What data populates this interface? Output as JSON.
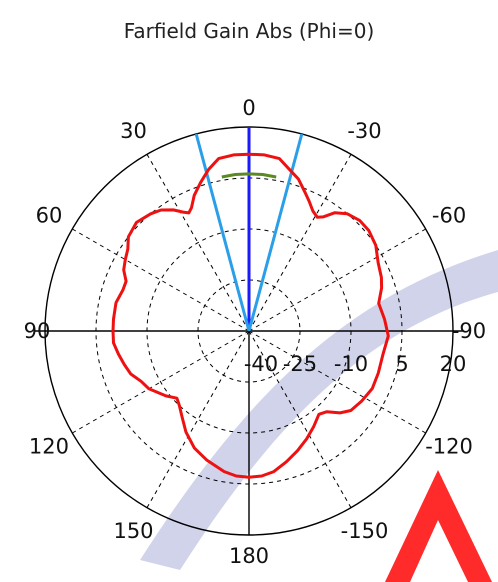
{
  "chart_data": {
    "type": "polar",
    "title": "Farfield Gain Abs (Phi=0)",
    "angle_unit": "deg",
    "angle_zero": "top",
    "angle_direction": "counterclockwise",
    "angle_ticks": [
      0,
      30,
      60,
      90,
      120,
      150,
      180,
      -150,
      -120,
      -90,
      -60,
      -30
    ],
    "angle_tick_labels": [
      "0",
      "30",
      "60",
      "90",
      "120",
      "150",
      "180",
      "-150",
      "-120",
      "-90",
      "-60",
      "-30"
    ],
    "radial_range": [
      -40,
      20
    ],
    "radial_ticks": [
      -40,
      -25,
      -10,
      5,
      20
    ],
    "radial_tick_labels": [
      "-40",
      "-25",
      "-10",
      "5",
      "20"
    ],
    "grid": true,
    "series": [
      {
        "color": "#ee1111",
        "points": [
          [
            0,
            12
          ],
          [
            5,
            12
          ],
          [
            10,
            11.5
          ],
          [
            14,
            9
          ],
          [
            18,
            6
          ],
          [
            22,
            3
          ],
          [
            25,
            0
          ],
          [
            27,
            -1
          ],
          [
            29,
            0
          ],
          [
            32,
            2
          ],
          [
            36,
            4
          ],
          [
            40,
            5
          ],
          [
            46,
            6
          ],
          [
            52,
            5
          ],
          [
            56,
            3
          ],
          [
            60,
            2
          ],
          [
            64,
            1
          ],
          [
            68,
            -1
          ],
          [
            72,
            -1
          ],
          [
            78,
            0
          ],
          [
            85,
            0
          ],
          [
            90,
            0
          ],
          [
            95,
            0
          ],
          [
            100,
            -1
          ],
          [
            105,
            -2
          ],
          [
            110,
            -3
          ],
          [
            115,
            -5
          ],
          [
            120,
            -6
          ],
          [
            128,
            -9
          ],
          [
            133,
            -11
          ],
          [
            137,
            -10
          ],
          [
            142,
            -8
          ],
          [
            148,
            -5
          ],
          [
            155,
            -2
          ],
          [
            162,
            0
          ],
          [
            170,
            2
          ],
          [
            175,
            2.8
          ],
          [
            180,
            3
          ],
          [
            -175,
            2.8
          ],
          [
            -170,
            2
          ],
          [
            -164,
            0
          ],
          [
            -158,
            -2
          ],
          [
            -152,
            -4
          ],
          [
            -146,
            -6
          ],
          [
            -140,
            -8
          ],
          [
            -136,
            -7
          ],
          [
            -132,
            -4
          ],
          [
            -128,
            -2
          ],
          [
            -122,
            -1
          ],
          [
            -115,
            0
          ],
          [
            -108,
            0
          ],
          [
            -100,
            0
          ],
          [
            -92,
            1
          ],
          [
            -85,
            0
          ],
          [
            -78,
            -1
          ],
          [
            -72,
            1
          ],
          [
            -68,
            2
          ],
          [
            -62,
            3
          ],
          [
            -56,
            5
          ],
          [
            -50,
            6
          ],
          [
            -45,
            6
          ],
          [
            -40,
            5
          ],
          [
            -36,
            3
          ],
          [
            -33,
            0
          ],
          [
            -31,
            -1
          ],
          [
            -28,
            0
          ],
          [
            -25,
            2
          ],
          [
            -22,
            4
          ],
          [
            -18,
            7
          ],
          [
            -14,
            9
          ],
          [
            -10,
            11.5
          ],
          [
            -5,
            12
          ],
          [
            0,
            12
          ]
        ]
      },
      {
        "color": "#5b8a24",
        "points": [
          [
            -10,
            6
          ],
          [
            -5,
            6.2
          ],
          [
            0,
            6.2
          ],
          [
            5,
            6.2
          ],
          [
            10,
            6
          ]
        ]
      }
    ],
    "reference_lines": [
      {
        "angle": 0,
        "color": "#1a1aff"
      },
      {
        "angle": 15,
        "color": "#2a9fe8"
      },
      {
        "angle": -15,
        "color": "#2a9fe8"
      }
    ]
  },
  "colors": {
    "grid_solid": "#000000",
    "grid_dashed": "#000000",
    "watermark_blue": "#c9cbe6",
    "watermark_red": "#ff2b2b"
  }
}
